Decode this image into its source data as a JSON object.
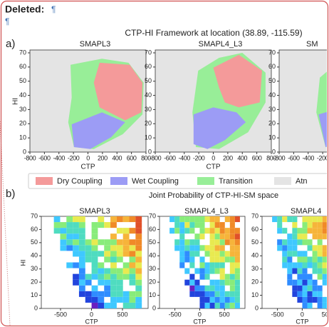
{
  "header": {
    "label": "Deleted:",
    "mark": "¶"
  },
  "paragraph_mark": "¶",
  "figure": {
    "panel_a": {
      "label": "a)",
      "title": "CTP-HI Framework at location (38.89, -115.59)",
      "subplots": [
        "SMAPL3",
        "SMAPL4_L3",
        "SM"
      ],
      "xlabel": "CTP",
      "ylabel": "HI",
      "xticks": [
        "-800",
        "-600",
        "-400",
        "-200",
        "0",
        "200",
        "400",
        "600",
        "800"
      ],
      "yticks": [
        "0",
        "10",
        "20",
        "30",
        "40",
        "50",
        "60",
        "70"
      ],
      "legend": [
        "Dry Coupling",
        "Wet Coupling",
        "Transition",
        "Atn"
      ]
    },
    "panel_b": {
      "label": "b)",
      "title": "Joint Probability of CTP-HI-SM space",
      "subplots": [
        "SMAPL3",
        "SMAPL4_L3",
        "SMAPL4"
      ],
      "xlabel": "CTP",
      "ylabel": "HI",
      "xticks": [
        "-500",
        "0",
        "500"
      ],
      "yticks": [
        "0",
        "10",
        "20",
        "30",
        "40",
        "50",
        "60",
        "70"
      ]
    }
  }
}
